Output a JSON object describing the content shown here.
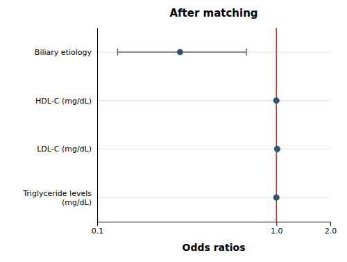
{
  "chart_data": {
    "type": "forest",
    "title": "After matching",
    "xlabel": "Odds ratios",
    "categories": [
      "Triglyceride levels\n(mg/dL)",
      "LDL-C (mg/dL)",
      "HDL-C (mg/dL)",
      "Biliary etiology"
    ],
    "values": [
      1.0,
      1.01,
      1.0,
      0.29
    ],
    "ci_low": [
      0.999,
      1.005,
      0.999,
      0.13
    ],
    "ci_high": [
      1.001,
      1.015,
      1.001,
      0.68
    ],
    "ref_line": 1.0,
    "color": "#2a5470",
    "log": "x",
    "xlim": [
      0.1,
      2.0
    ],
    "xticks": [
      0.1,
      {
        "value": 1.0,
        "label": "1.0"
      },
      {
        "value": 2.0,
        "label": "2.0"
      }
    ],
    "grid": true
  }
}
